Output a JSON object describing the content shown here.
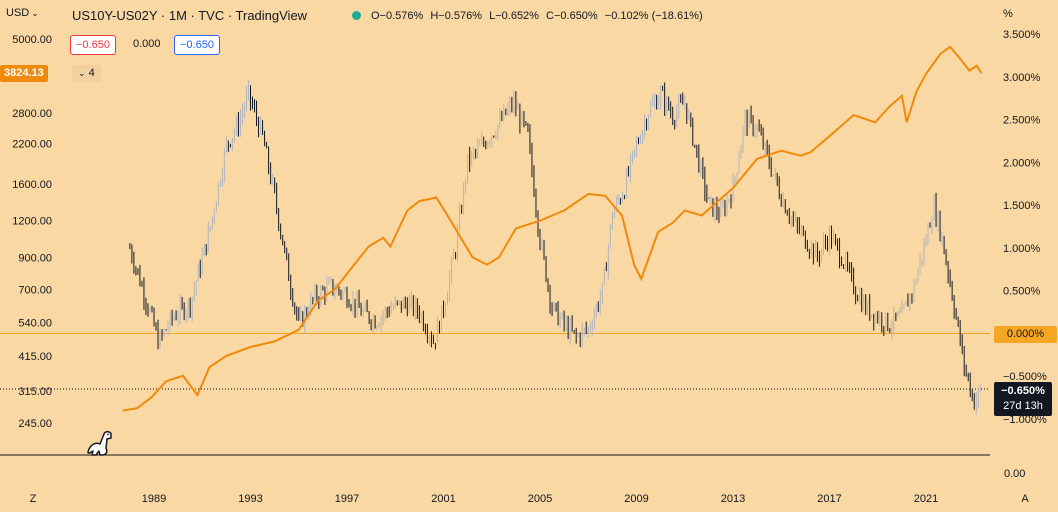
{
  "header": {
    "currency": "USD",
    "currency_caret": "⌄",
    "symbol_title": "US10Y-US02Y · 1M · TVC · TradingView",
    "ohlc": {
      "open": "O−0.576%",
      "high": "H−0.576%",
      "low": "L−0.652%",
      "close": "C−0.650%",
      "change": "−0.102% (−18.61%)"
    },
    "status_color": "#22ab94"
  },
  "order_panel": {
    "sell_value": "−0.650",
    "spread_value": "0.000",
    "buy_value": "−0.650"
  },
  "overlay": {
    "price_pill": "3824.13",
    "indicator_count": "4",
    "collapse_caret": "⌄"
  },
  "right_axis": {
    "unit_label": "%",
    "zero_line_pill": "0.000%",
    "last_value_pill": "−0.650%",
    "countdown": "27d 13h",
    "bottom_value": "0.00",
    "auto_button": "A"
  },
  "left_axis": {
    "zoom_button": "Z"
  },
  "colors": {
    "background": "#f9d8a3",
    "spx_line": "#f08a0c",
    "candle": "#131722",
    "candle_up": "#b2b5be",
    "zero_line": "#f5a623"
  },
  "chart_data": [
    {
      "type": "line",
      "name": "SPX (overlay, log scale)",
      "title": "",
      "ylim": [
        200,
        6000
      ],
      "y_ticks": [
        "5000.00",
        "2800.00",
        "2200.00",
        "1600.00",
        "1200.00",
        "900.00",
        "700.00",
        "540.00",
        "415.00",
        "315.00",
        "245.00"
      ],
      "y_tick_values": [
        5000,
        2800,
        2200,
        1600,
        1200,
        900,
        700,
        540,
        415,
        315,
        245
      ],
      "x": [
        1987.7,
        1988.3,
        1988.9,
        1989.5,
        1990.2,
        1990.8,
        1991.3,
        1992.0,
        1993.0,
        1994.0,
        1995.0,
        1995.8,
        1996.5,
        1997.3,
        1997.9,
        1998.5,
        1998.8,
        1999.5,
        2000.0,
        2000.7,
        2001.3,
        2002.2,
        2002.8,
        2003.3,
        2004.0,
        2005.0,
        2006.0,
        2007.0,
        2007.7,
        2008.4,
        2008.9,
        2009.2,
        2009.9,
        2010.5,
        2011.0,
        2011.7,
        2012.3,
        2013.0,
        2014.0,
        2015.0,
        2015.8,
        2016.2,
        2017.0,
        2018.0,
        2018.9,
        2019.5,
        2020.0,
        2020.2,
        2020.6,
        2021.0,
        2021.6,
        2022.0,
        2022.4,
        2022.8,
        2023.1,
        2023.3
      ],
      "values": [
        270,
        275,
        300,
        340,
        355,
        305,
        380,
        415,
        445,
        465,
        510,
        640,
        700,
        850,
        980,
        1050,
        980,
        1300,
        1400,
        1440,
        1200,
        900,
        850,
        900,
        1130,
        1200,
        1300,
        1480,
        1460,
        1250,
        850,
        760,
        1100,
        1180,
        1300,
        1250,
        1380,
        1550,
        1950,
        2080,
        2000,
        2050,
        2330,
        2750,
        2600,
        2950,
        3200,
        2600,
        3300,
        3800,
        4450,
        4700,
        4300,
        3900,
        4050,
        3824
      ]
    },
    {
      "type": "candlestick",
      "name": "US10Y-US02Y (monthly spread %)",
      "title": "US10Y-US02Y · 1M · TVC · TradingView",
      "ylim": [
        -1.2,
        3.7
      ],
      "y_ticks": [
        "3.500%",
        "3.000%",
        "2.500%",
        "2.000%",
        "1.500%",
        "1.000%",
        "0.500%",
        "0.000%",
        "−0.500%",
        "−1.000%"
      ],
      "y_tick_values": [
        3.5,
        3.0,
        2.5,
        2.0,
        1.5,
        1.0,
        0.5,
        0.0,
        -0.5,
        -1.0
      ],
      "x": [
        1988.0,
        1988.5,
        1989.2,
        1989.8,
        1990.5,
        1991.3,
        1992.0,
        1992.5,
        1992.9,
        1993.5,
        1994.0,
        1994.6,
        1995.0,
        1995.6,
        1996.3,
        1997.0,
        1997.6,
        1998.2,
        1998.8,
        1999.5,
        2000.0,
        2000.6,
        2001.0,
        2001.5,
        2002.0,
        2002.6,
        2003.3,
        2003.9,
        2004.5,
        2005.0,
        2005.5,
        2006.0,
        2006.5,
        2007.0,
        2007.6,
        2008.0,
        2008.5,
        2009.0,
        2009.5,
        2010.0,
        2010.5,
        2011.0,
        2011.5,
        2012.0,
        2012.5,
        2013.0,
        2013.5,
        2014.0,
        2014.5,
        2015.0,
        2015.5,
        2016.0,
        2016.5,
        2017.0,
        2017.5,
        2018.0,
        2018.5,
        2019.0,
        2019.5,
        2020.0,
        2020.5,
        2021.0,
        2021.3,
        2021.6,
        2022.0,
        2022.3,
        2022.6,
        2023.0,
        2023.3
      ],
      "values": [
        1.0,
        0.55,
        -0.1,
        0.2,
        0.35,
        1.2,
        2.2,
        2.45,
        2.8,
        2.3,
        1.6,
        0.65,
        0.1,
        0.4,
        0.55,
        0.45,
        0.25,
        0.15,
        0.3,
        0.35,
        0.25,
        -0.1,
        0.3,
        1.0,
        2.0,
        2.2,
        2.45,
        2.7,
        2.3,
        1.1,
        0.3,
        0.1,
        -0.05,
        0.05,
        0.5,
        1.4,
        1.7,
        2.2,
        2.6,
        2.8,
        2.55,
        2.7,
        2.1,
        1.5,
        1.4,
        1.7,
        2.5,
        2.4,
        2.0,
        1.6,
        1.3,
        1.1,
        0.9,
        1.15,
        0.9,
        0.55,
        0.3,
        0.2,
        0.1,
        0.2,
        0.55,
        1.1,
        1.5,
        1.2,
        0.6,
        0.1,
        -0.4,
        -0.8,
        -0.65
      ],
      "last_value": -0.65,
      "reference_line": 0.0
    }
  ],
  "x_axis": {
    "labels": [
      "1989",
      "1993",
      "1997",
      "2001",
      "2005",
      "2009",
      "2013",
      "2017",
      "2021"
    ],
    "values": [
      1989,
      1993,
      1997,
      2001,
      2005,
      2009,
      2013,
      2017,
      2021
    ]
  }
}
